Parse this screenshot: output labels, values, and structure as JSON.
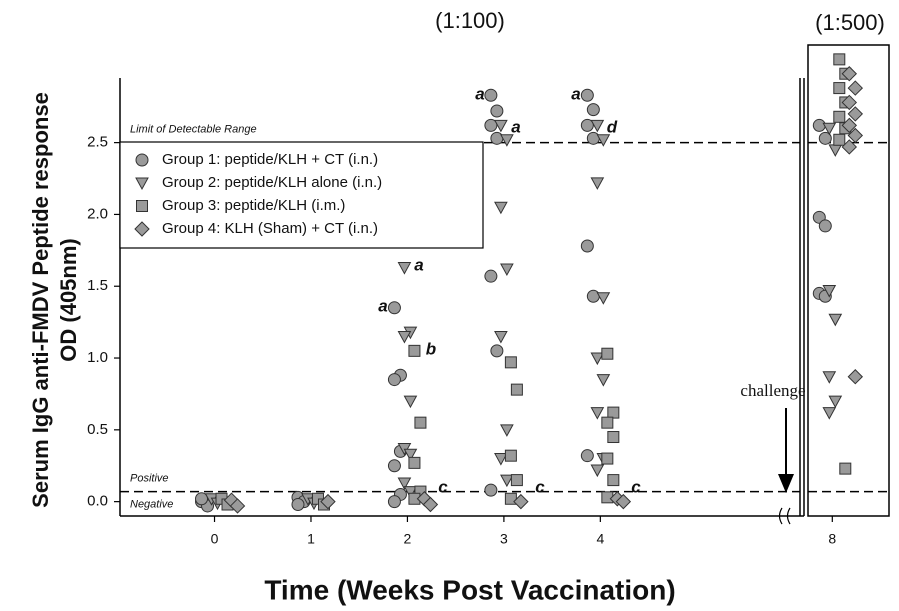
{
  "chart_data": {
    "type": "scatter",
    "xlabel": "Time (Weeks Post Vaccination)",
    "ylabel": [
      "Serum IgG anti-FMDV Peptide response",
      "OD (405nm)"
    ],
    "panels": [
      {
        "subtitle": "(1:100)",
        "xlim": [
          -0.98,
          6.07
        ],
        "ylim": [
          -0.1,
          2.95
        ],
        "xticks": [
          0,
          1,
          2,
          3,
          4
        ],
        "yticks": [
          {
            "value": 0,
            "label": "0.0"
          },
          0.5,
          {
            "value": 1,
            "label": "1.0"
          },
          1.5,
          {
            "value": 2,
            "label": "2.0"
          },
          2.5
        ]
      },
      {
        "subtitle": "(1:500)",
        "xlim": [
          7.67,
          8.77
        ],
        "ylim": [
          -0.1,
          3.18
        ],
        "xticks": [
          8
        ]
      }
    ],
    "hlines": [
      {
        "value": 2.5,
        "label": "Limit of Detectable Range"
      },
      {
        "value": 0.07,
        "label": "Positive"
      }
    ],
    "below_line_label": "Negative",
    "challenge_label": "challenge",
    "annotations": [
      "a",
      "a",
      "b",
      "c",
      "a",
      "a",
      "c",
      "a",
      "d",
      "c"
    ],
    "legend": "upper left",
    "series": [
      {
        "name": "Group 1: peptide/KLH + CT (i.n.)",
        "marker": "circle",
        "color": "#9a9a9a",
        "x": [
          0,
          0,
          0,
          1,
          1,
          1,
          2,
          2,
          2,
          2,
          2,
          2,
          2,
          3,
          3,
          3,
          3,
          3,
          3,
          3,
          4,
          4,
          4,
          4,
          4,
          4,
          4,
          8,
          8,
          8,
          8,
          8,
          8
        ],
        "values": [
          0.0,
          -0.03,
          0.02,
          0.03,
          0.0,
          -0.02,
          1.35,
          0.88,
          0.85,
          0.35,
          0.25,
          0.05,
          0.0,
          2.83,
          2.72,
          2.62,
          2.53,
          1.57,
          1.05,
          0.08,
          2.83,
          2.73,
          2.62,
          2.53,
          1.78,
          1.43,
          0.32,
          2.62,
          2.53,
          1.98,
          1.92,
          1.45,
          1.43
        ]
      },
      {
        "name": "Group 2: peptide/KLH alone  (i.n.)",
        "marker": "triangle-down",
        "color": "#9a9a9a",
        "x": [
          0,
          0,
          1,
          1,
          2,
          2,
          2,
          2,
          2,
          2,
          2,
          2,
          3,
          3,
          3,
          3,
          3,
          3,
          3,
          3,
          4,
          4,
          4,
          4,
          4,
          4,
          4,
          4,
          4,
          8,
          8,
          8,
          8,
          8,
          8,
          8
        ],
        "values": [
          0.02,
          -0.01,
          0.02,
          -0.01,
          1.63,
          1.18,
          1.15,
          0.7,
          0.37,
          0.33,
          0.13,
          0.07,
          2.62,
          2.52,
          2.05,
          1.62,
          1.15,
          0.5,
          0.3,
          0.15,
          2.62,
          2.52,
          2.22,
          1.42,
          1.0,
          0.85,
          0.62,
          0.3,
          0.22,
          2.6,
          2.45,
          1.47,
          1.27,
          0.87,
          0.7,
          0.62
        ]
      },
      {
        "name": "Group 3: peptide/KLH (i.m.)",
        "marker": "square",
        "color": "#9a9a9a",
        "x": [
          0,
          0,
          1,
          1,
          2,
          2,
          2,
          2,
          2,
          3,
          3,
          3,
          3,
          3,
          4,
          4,
          4,
          4,
          4,
          4,
          4,
          8,
          8,
          8,
          8,
          8,
          8,
          8,
          8
        ],
        "values": [
          0.02,
          -0.02,
          0.02,
          -0.02,
          1.05,
          0.55,
          0.27,
          0.07,
          0.02,
          0.97,
          0.78,
          0.32,
          0.15,
          0.02,
          1.03,
          0.62,
          0.55,
          0.45,
          0.3,
          0.15,
          0.03,
          3.08,
          2.98,
          2.88,
          2.78,
          2.68,
          2.6,
          2.52,
          0.23
        ]
      },
      {
        "name": "Group 4:  KLH (Sham) + CT (i.n.)",
        "marker": "diamond",
        "color": "#9a9a9a",
        "x": [
          0,
          0,
          1,
          2,
          2,
          3,
          4,
          4,
          8,
          8,
          8,
          8,
          8,
          8,
          8,
          8
        ],
        "values": [
          0.01,
          -0.03,
          0.0,
          0.02,
          -0.02,
          0.0,
          0.02,
          0.0,
          2.98,
          2.88,
          2.78,
          2.7,
          2.62,
          2.55,
          2.47,
          0.87
        ]
      }
    ]
  }
}
